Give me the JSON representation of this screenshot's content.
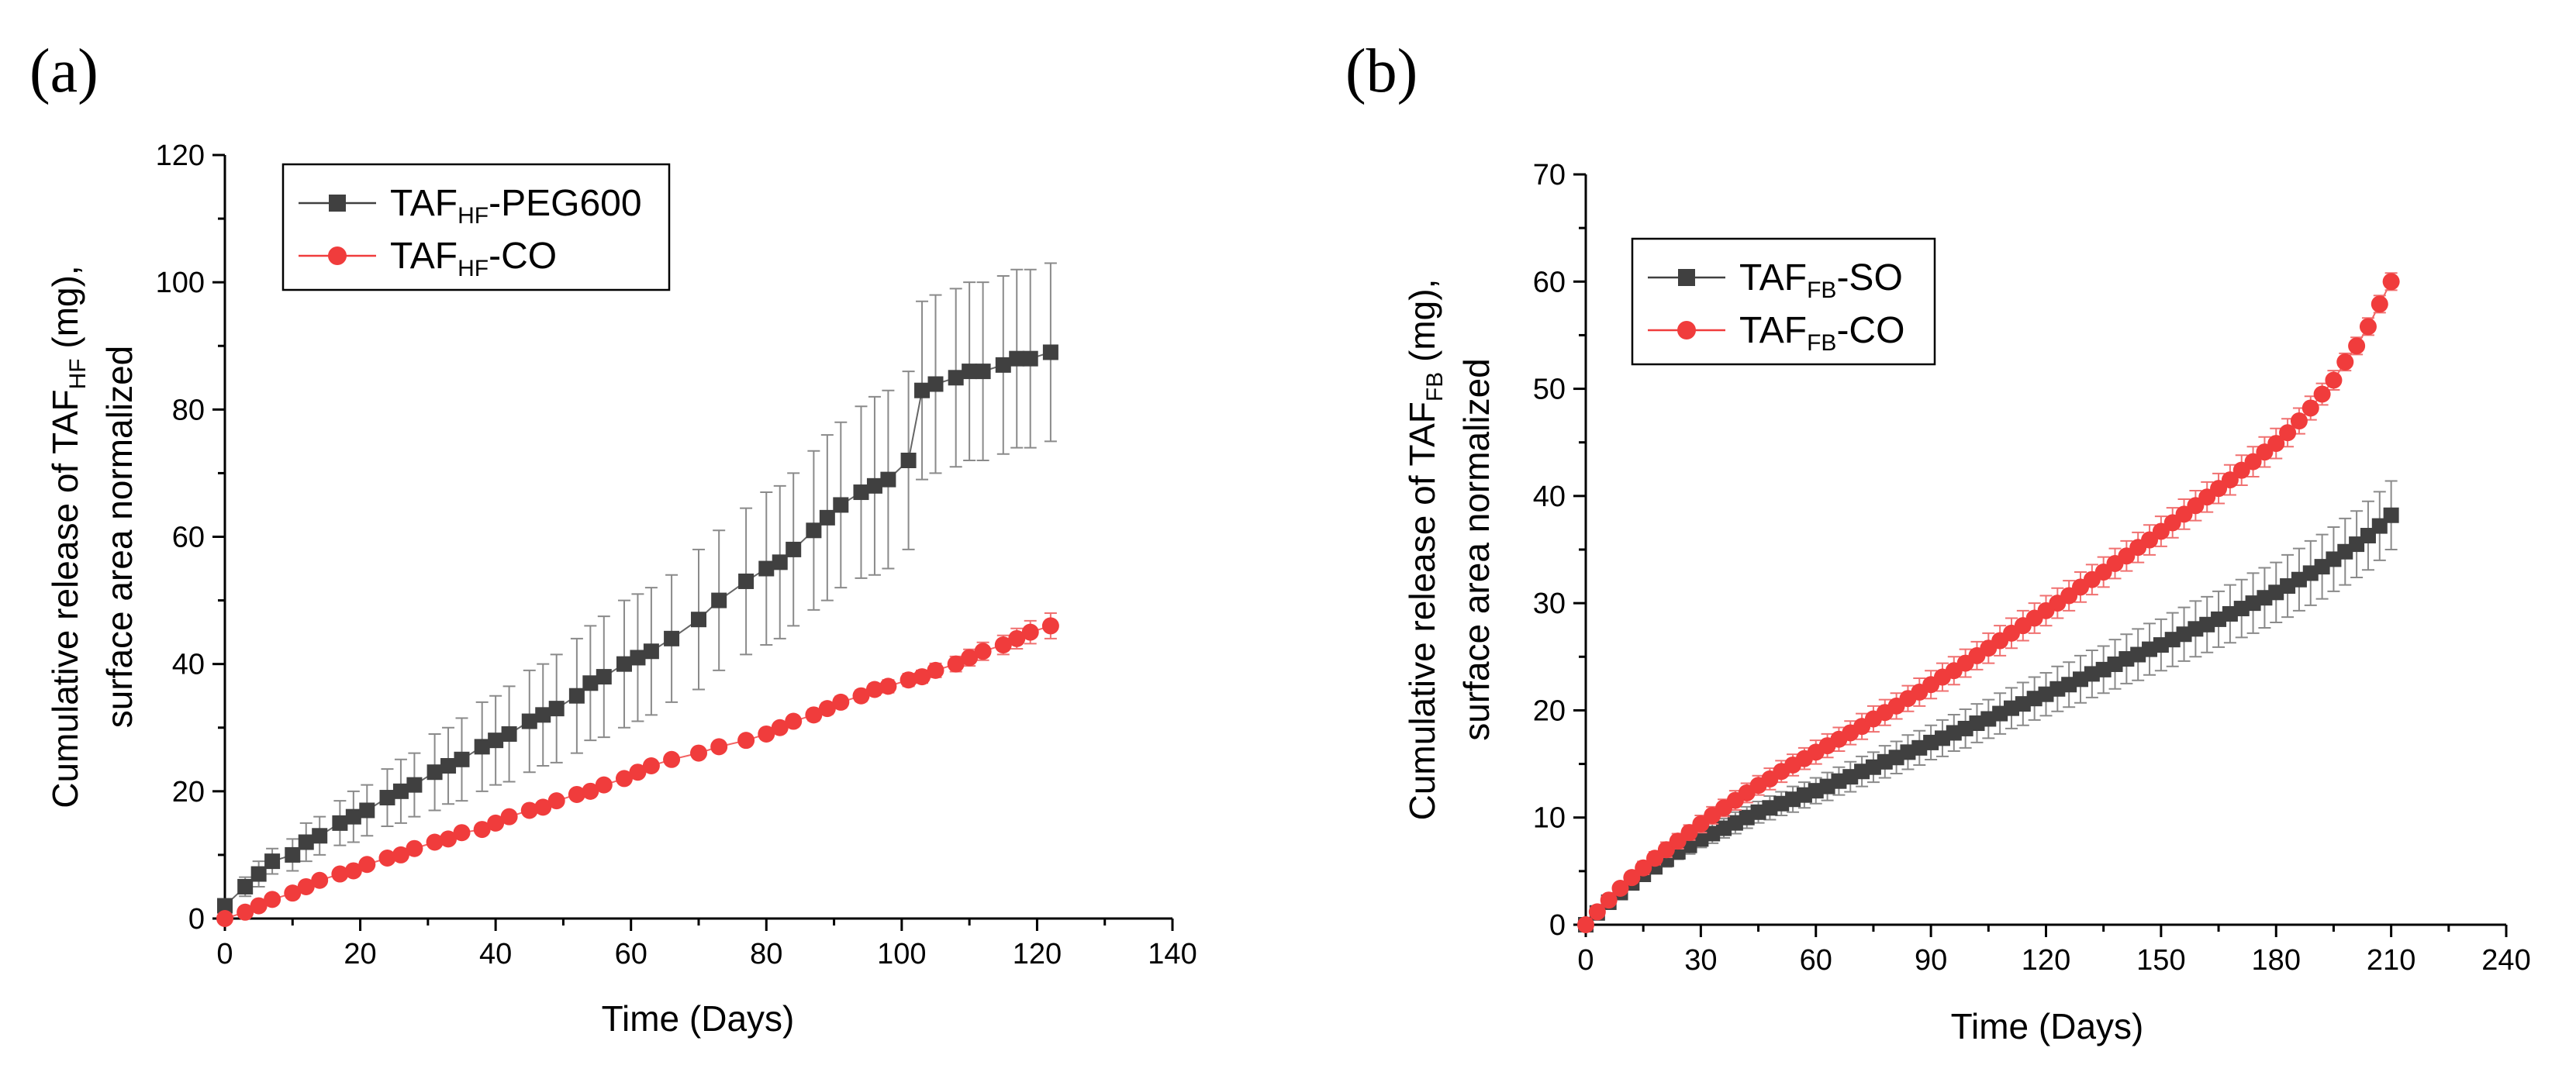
{
  "chart_data": [
    {
      "id": "a",
      "type": "scatter",
      "panel_label": "(a)",
      "xlabel": "Time (Days)",
      "ylabel_line1": {
        "pre": "Cumulative release of TAF",
        "sub": "HF",
        "post": " (mg),",
        "full": "Cumulative release of TAF HF (mg),"
      },
      "ylabel_line2": "surface area normalized",
      "xlim": [
        0,
        140
      ],
      "ylim": [
        0,
        120
      ],
      "xticks": [
        0,
        20,
        40,
        60,
        80,
        100,
        120,
        140
      ],
      "yticks": [
        0,
        20,
        40,
        60,
        80,
        100,
        120
      ],
      "legend_position": "top-left",
      "series": [
        {
          "name": "TAF HF -PEG600",
          "legend": {
            "pre": "TAF",
            "sub": "HF",
            "post": "-PEG600"
          },
          "color": "#404040",
          "marker": "square",
          "x": [
            0,
            3,
            5,
            7,
            10,
            12,
            14,
            17,
            19,
            21,
            24,
            26,
            28,
            31,
            33,
            35,
            38,
            40,
            42,
            45,
            47,
            49,
            52,
            54,
            56,
            59,
            61,
            63,
            66,
            70,
            73,
            77,
            80,
            82,
            84,
            87,
            89,
            91,
            94,
            96,
            98,
            101,
            103,
            105,
            108,
            110,
            112,
            115,
            117,
            119,
            122
          ],
          "y": [
            2,
            5,
            7,
            9,
            10,
            12,
            13,
            15,
            16,
            17,
            19,
            20,
            21,
            23,
            24,
            25,
            27,
            28,
            29,
            31,
            32,
            33,
            35,
            37,
            38,
            40,
            41,
            42,
            44,
            47,
            50,
            53,
            55,
            56,
            58,
            61,
            63,
            65,
            67,
            68,
            69,
            72,
            83,
            84,
            85,
            86,
            86,
            87,
            88,
            88,
            89
          ],
          "err": [
            1,
            1.5,
            2,
            2,
            2.5,
            3,
            3,
            3.5,
            4,
            4,
            4.5,
            5,
            5,
            6,
            6,
            6.5,
            7,
            7,
            7.5,
            8,
            8,
            8.5,
            9,
            9,
            9.5,
            10,
            10,
            10,
            10,
            11,
            11,
            11.5,
            12,
            12,
            12,
            12.5,
            13,
            13,
            13.5,
            14,
            14,
            14,
            14,
            14,
            14,
            14,
            14,
            14,
            14,
            14,
            14
          ]
        },
        {
          "name": "TAF HF -CO",
          "legend": {
            "pre": "TAF",
            "sub": "HF",
            "post": "-CO"
          },
          "color": "#f03c3c",
          "marker": "circle",
          "x": [
            0,
            3,
            5,
            7,
            10,
            12,
            14,
            17,
            19,
            21,
            24,
            26,
            28,
            31,
            33,
            35,
            38,
            40,
            42,
            45,
            47,
            49,
            52,
            54,
            56,
            59,
            61,
            63,
            66,
            70,
            73,
            77,
            80,
            82,
            84,
            87,
            89,
            91,
            94,
            96,
            98,
            101,
            103,
            105,
            108,
            110,
            112,
            115,
            117,
            119,
            122
          ],
          "y": [
            0,
            1,
            2,
            3,
            4,
            5,
            6,
            7,
            7.5,
            8.5,
            9.5,
            10,
            11,
            12,
            12.5,
            13.5,
            14,
            15,
            16,
            17,
            17.5,
            18.5,
            19.5,
            20,
            21,
            22,
            23,
            24,
            25,
            26,
            27,
            28,
            29,
            30,
            31,
            32,
            33,
            34,
            35,
            36,
            36.5,
            37.5,
            38,
            39,
            40,
            41,
            42,
            43,
            44,
            45,
            46
          ],
          "err": [
            0.3,
            0.3,
            0.3,
            0.3,
            0.3,
            0.3,
            0.4,
            0.4,
            0.4,
            0.4,
            0.4,
            0.4,
            0.5,
            0.5,
            0.5,
            0.5,
            0.5,
            0.5,
            0.5,
            0.6,
            0.6,
            0.6,
            0.6,
            0.6,
            0.6,
            0.7,
            0.7,
            0.7,
            0.7,
            0.7,
            0.8,
            0.8,
            0.8,
            0.8,
            0.8,
            0.9,
            0.9,
            0.9,
            0.9,
            0.9,
            1,
            1,
            1,
            1.1,
            1.2,
            1.3,
            1.4,
            1.5,
            1.6,
            1.8,
            2
          ]
        }
      ]
    },
    {
      "id": "b",
      "type": "scatter",
      "panel_label": "(b)",
      "xlabel": "Time (Days)",
      "ylabel_line1": {
        "pre": "Cumulative release of TAF",
        "sub": "FB",
        "post": " (mg),",
        "full": "Cumulative release of TAF FB (mg),"
      },
      "ylabel_line2": "surface area normalized",
      "xlim": [
        0,
        240
      ],
      "ylim": [
        0,
        70
      ],
      "xticks": [
        0,
        30,
        60,
        90,
        120,
        150,
        180,
        210,
        240
      ],
      "yticks": [
        0,
        10,
        20,
        30,
        40,
        50,
        60,
        70
      ],
      "legend_position": "top-left",
      "series": [
        {
          "name": "TAF FB -SO",
          "legend": {
            "pre": "TAF",
            "sub": "FB",
            "post": "-SO"
          },
          "color": "#404040",
          "marker": "square",
          "x": [
            0,
            3,
            6,
            9,
            12,
            15,
            18,
            21,
            24,
            27,
            30,
            33,
            36,
            39,
            42,
            45,
            48,
            51,
            54,
            57,
            60,
            63,
            66,
            69,
            72,
            75,
            78,
            81,
            84,
            87,
            90,
            93,
            96,
            99,
            102,
            105,
            108,
            111,
            114,
            117,
            120,
            123,
            126,
            129,
            132,
            135,
            138,
            141,
            144,
            147,
            150,
            153,
            156,
            159,
            162,
            165,
            168,
            171,
            174,
            177,
            180,
            183,
            186,
            189,
            192,
            195,
            198,
            201,
            204,
            207,
            210
          ],
          "y": [
            0,
            1.1,
            2.1,
            3.0,
            3.9,
            4.7,
            5.4,
            6.1,
            6.8,
            7.4,
            8.0,
            8.5,
            9.0,
            9.5,
            10.0,
            10.5,
            10.9,
            11.3,
            11.7,
            12.1,
            12.5,
            12.9,
            13.4,
            13.8,
            14.3,
            14.7,
            15.2,
            15.6,
            16.1,
            16.5,
            17.0,
            17.4,
            17.9,
            18.3,
            18.8,
            19.2,
            19.7,
            20.2,
            20.6,
            21.1,
            21.5,
            22.0,
            22.4,
            22.9,
            23.4,
            23.8,
            24.3,
            24.8,
            25.2,
            25.7,
            26.1,
            26.6,
            27.1,
            27.6,
            28.0,
            28.5,
            29.0,
            29.5,
            30.0,
            30.5,
            31.0,
            31.6,
            32.2,
            32.8,
            33.4,
            34.1,
            34.8,
            35.5,
            36.3,
            37.2,
            38.2
          ],
          "err": [
            0.2,
            0.3,
            0.4,
            0.5,
            0.5,
            0.6,
            0.6,
            0.7,
            0.7,
            0.8,
            0.8,
            0.9,
            0.9,
            1.0,
            1.0,
            1.0,
            1.1,
            1.1,
            1.2,
            1.2,
            1.2,
            1.3,
            1.3,
            1.4,
            1.4,
            1.4,
            1.5,
            1.5,
            1.6,
            1.6,
            1.6,
            1.7,
            1.7,
            1.8,
            1.8,
            1.8,
            1.9,
            1.9,
            2.0,
            2.0,
            2.0,
            2.1,
            2.1,
            2.2,
            2.2,
            2.2,
            2.3,
            2.3,
            2.4,
            2.4,
            2.4,
            2.5,
            2.5,
            2.6,
            2.6,
            2.6,
            2.7,
            2.7,
            2.8,
            2.8,
            2.8,
            2.9,
            2.9,
            3.0,
            3.0,
            3.0,
            3.1,
            3.1,
            3.2,
            3.2,
            3.2
          ]
        },
        {
          "name": "TAF FB -CO",
          "legend": {
            "pre": "TAF",
            "sub": "FB",
            "post": "-CO"
          },
          "color": "#f03c3c",
          "marker": "circle",
          "x": [
            0,
            3,
            6,
            9,
            12,
            15,
            18,
            21,
            24,
            27,
            30,
            33,
            36,
            39,
            42,
            45,
            48,
            51,
            54,
            57,
            60,
            63,
            66,
            69,
            72,
            75,
            78,
            81,
            84,
            87,
            90,
            93,
            96,
            99,
            102,
            105,
            108,
            111,
            114,
            117,
            120,
            123,
            126,
            129,
            132,
            135,
            138,
            141,
            144,
            147,
            150,
            153,
            156,
            159,
            162,
            165,
            168,
            171,
            174,
            177,
            180,
            183,
            186,
            189,
            192,
            195,
            198,
            201,
            204,
            207,
            210
          ],
          "y": [
            0,
            1.2,
            2.3,
            3.4,
            4.4,
            5.3,
            6.2,
            7.0,
            7.8,
            8.6,
            9.4,
            10.2,
            10.9,
            11.6,
            12.3,
            13.0,
            13.6,
            14.3,
            14.9,
            15.5,
            16.1,
            16.7,
            17.3,
            17.9,
            18.5,
            19.2,
            19.8,
            20.4,
            21.1,
            21.7,
            22.4,
            23.1,
            23.7,
            24.4,
            25.1,
            25.8,
            26.5,
            27.2,
            27.9,
            28.6,
            29.3,
            30.0,
            30.7,
            31.5,
            32.2,
            32.9,
            33.7,
            34.4,
            35.2,
            35.9,
            36.7,
            37.5,
            38.3,
            39.1,
            39.9,
            40.7,
            41.5,
            42.4,
            43.2,
            44.1,
            44.9,
            45.9,
            47.0,
            48.2,
            49.5,
            50.8,
            52.5,
            54.0,
            55.8,
            57.9,
            60.0
          ],
          "err": [
            0.2,
            0.3,
            0.4,
            0.5,
            0.5,
            0.6,
            0.6,
            0.7,
            0.7,
            0.7,
            0.8,
            0.8,
            0.8,
            0.9,
            0.9,
            0.9,
            1.0,
            1.0,
            1.0,
            1.0,
            1.1,
            1.1,
            1.1,
            1.1,
            1.2,
            1.2,
            1.2,
            1.2,
            1.2,
            1.3,
            1.3,
            1.3,
            1.3,
            1.3,
            1.3,
            1.4,
            1.4,
            1.4,
            1.4,
            1.4,
            1.4,
            1.4,
            1.4,
            1.4,
            1.4,
            1.4,
            1.4,
            1.4,
            1.4,
            1.4,
            1.4,
            1.4,
            1.4,
            1.4,
            1.4,
            1.4,
            1.4,
            1.4,
            1.4,
            1.4,
            1.4,
            1.3,
            1.2,
            1.1,
            1.0,
            0.9,
            0.8,
            0.8,
            0.8,
            0.8,
            0.8
          ]
        }
      ]
    }
  ]
}
